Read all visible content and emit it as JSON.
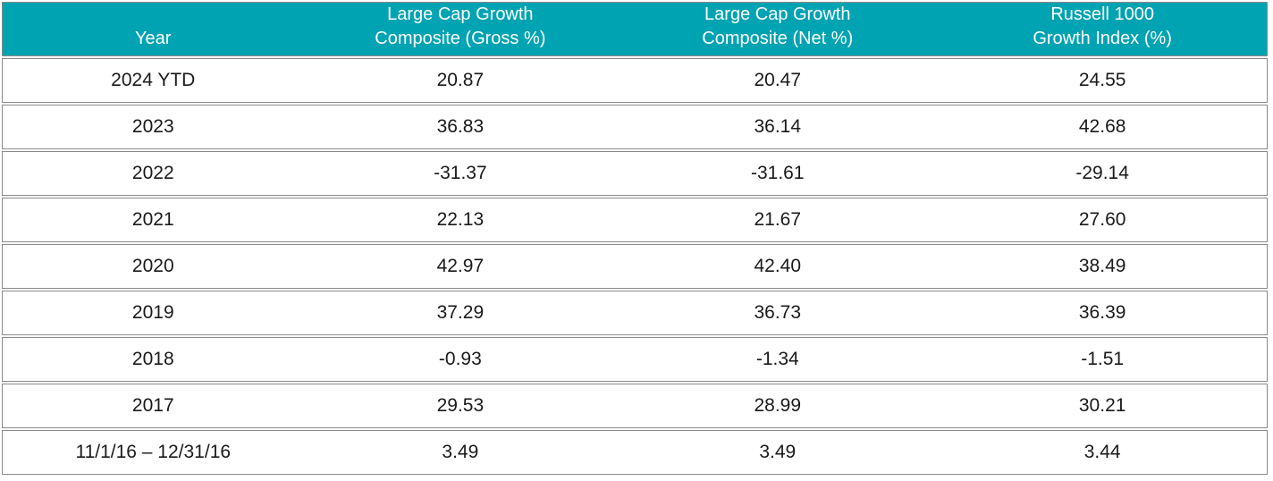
{
  "table": {
    "columns": [
      {
        "key": "year",
        "label": "Year"
      },
      {
        "key": "gross",
        "label": "Large Cap Growth\nComposite (Gross %)"
      },
      {
        "key": "net",
        "label": "Large Cap Growth\nComposite (Net %)"
      },
      {
        "key": "index",
        "label": "Russell 1000\nGrowth Index (%)"
      }
    ],
    "rows": [
      {
        "year": "2024 YTD",
        "gross": "20.87",
        "net": "20.47",
        "index": "24.55"
      },
      {
        "year": "2023",
        "gross": "36.83",
        "net": "36.14",
        "index": "42.68"
      },
      {
        "year": "2022",
        "gross": "-31.37",
        "net": "-31.61",
        "index": "-29.14"
      },
      {
        "year": "2021",
        "gross": "22.13",
        "net": "21.67",
        "index": "27.60"
      },
      {
        "year": "2020",
        "gross": "42.97",
        "net": "42.40",
        "index": "38.49"
      },
      {
        "year": "2019",
        "gross": "37.29",
        "net": "36.73",
        "index": "36.39"
      },
      {
        "year": "2018",
        "gross": "-0.93",
        "net": "-1.34",
        "index": "-1.51"
      },
      {
        "year": "2017",
        "gross": "29.53",
        "net": "28.99",
        "index": "30.21"
      },
      {
        "year": "11/1/16 – 12/31/16",
        "gross": "3.49",
        "net": "3.49",
        "index": "3.44"
      }
    ]
  },
  "colors": {
    "header_bg": "#00A3B2",
    "header_text": "#ffffff",
    "border": "#8a8a8a",
    "text": "#1a1a1a"
  }
}
